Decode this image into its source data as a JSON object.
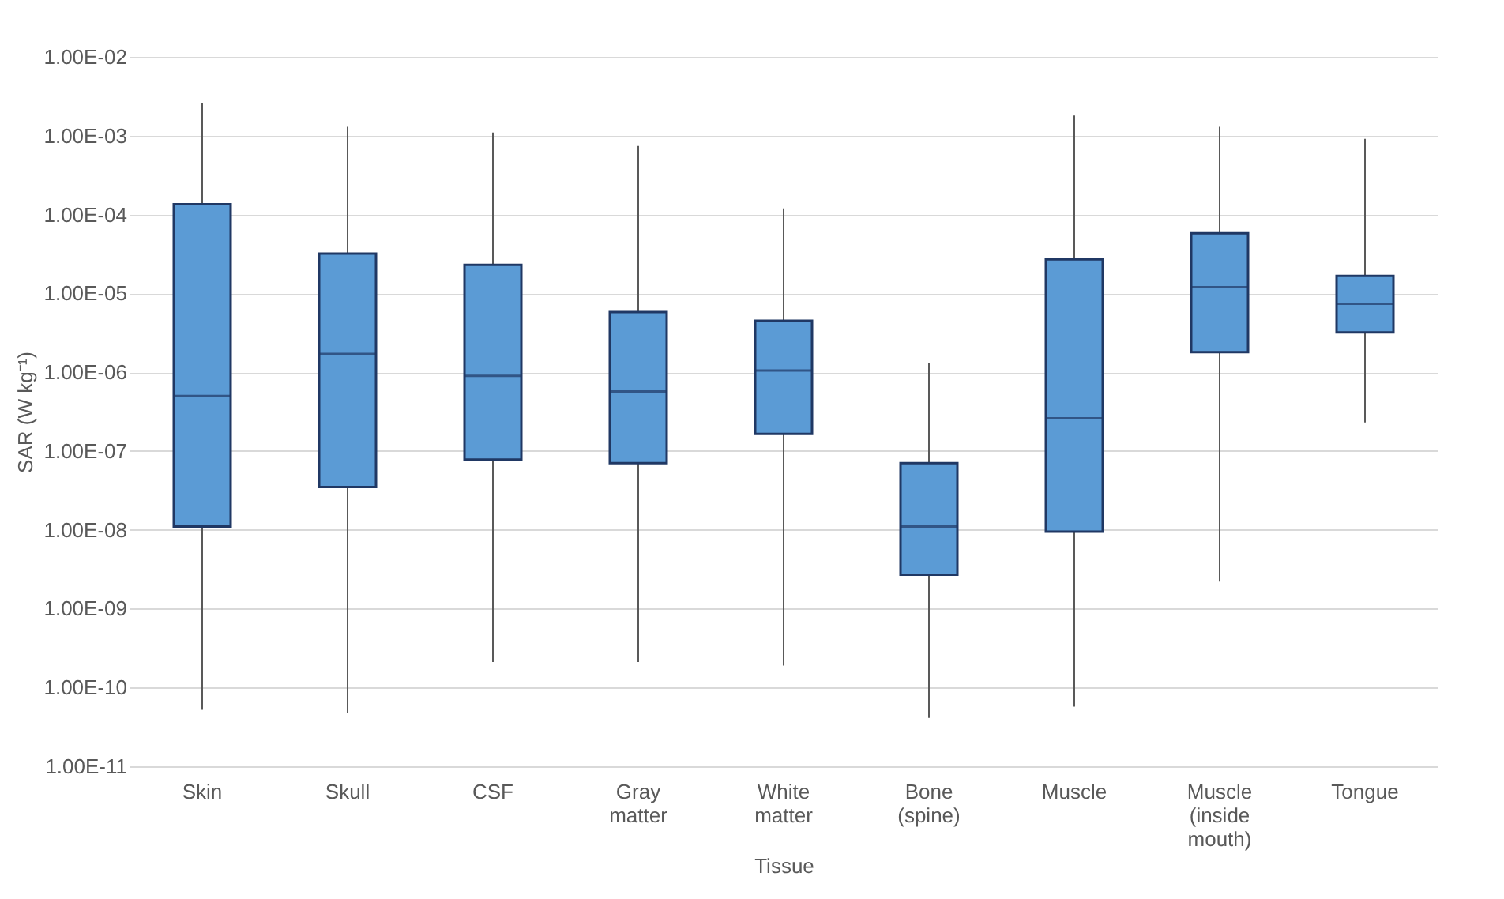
{
  "chart_data": {
    "type": "box",
    "xlabel": "Tissue",
    "ylabel": "SAR (W kg⁻¹)",
    "categories": [
      "Skin",
      "Skull",
      "CSF",
      "Gray matter",
      "White matter",
      "Bone (spine)",
      "Muscle",
      "Muscle (inside mouth)",
      "Tongue"
    ],
    "series": [
      {
        "color": "#5b9bd5",
        "boxes": [
          {
            "low": 5.2e-11,
            "q1": 1.1e-08,
            "median": 5e-07,
            "q3": 0.000135,
            "high": 0.0026
          },
          {
            "low": 4.7e-11,
            "q1": 3.5e-08,
            "median": 1.7e-06,
            "q3": 3.2e-05,
            "high": 0.0013
          },
          {
            "low": 2.1e-10,
            "q1": 7.8e-08,
            "median": 9e-07,
            "q3": 2.3e-05,
            "high": 0.0011
          },
          {
            "low": 2.1e-10,
            "q1": 7e-08,
            "median": 5.7e-07,
            "q3": 5.8e-06,
            "high": 0.00074
          },
          {
            "low": 1.9e-10,
            "q1": 1.65e-07,
            "median": 1.05e-06,
            "q3": 4.5e-06,
            "high": 0.00012
          },
          {
            "low": 4.1e-11,
            "q1": 2.7e-09,
            "median": 1.1e-08,
            "q3": 7e-08,
            "high": 1.3e-06
          },
          {
            "low": 5.7e-11,
            "q1": 9.5e-09,
            "median": 2.6e-07,
            "q3": 2.7e-05,
            "high": 0.0018
          },
          {
            "low": 2.2e-09,
            "q1": 1.8e-06,
            "median": 1.2e-05,
            "q3": 5.8e-05,
            "high": 0.0013
          },
          {
            "low": 2.3e-07,
            "q1": 3.2e-06,
            "median": 7.4e-06,
            "q3": 1.66e-05,
            "high": 0.00091
          }
        ]
      }
    ],
    "log": true,
    "ylim": [
      1e-11,
      0.01
    ],
    "yticks": [
      {
        "value": 1e-11,
        "label": "1.00E-11"
      },
      {
        "value": 1e-10,
        "label": "1.00E-10"
      },
      {
        "value": 1e-09,
        "label": "1.00E-09"
      },
      {
        "value": 1e-08,
        "label": "1.00E-08"
      },
      {
        "value": 1e-07,
        "label": "1.00E-07"
      },
      {
        "value": 1e-06,
        "label": "1.00E-06"
      },
      {
        "value": 1e-05,
        "label": "1.00E-05"
      },
      {
        "value": 0.0001,
        "label": "1.00E-04"
      },
      {
        "value": 0.001,
        "label": "1.00E-03"
      },
      {
        "value": 0.01,
        "label": "1.00E-02"
      }
    ],
    "grid": "y",
    "legend": false
  }
}
